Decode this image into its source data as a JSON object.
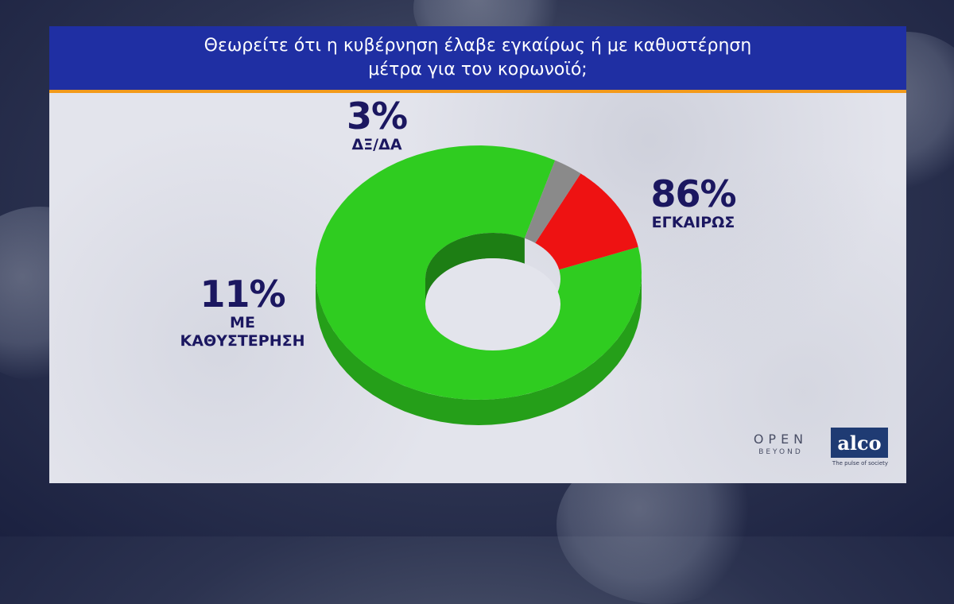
{
  "header": {
    "title_line1": "Θεωρείτε ότι η κυβέρνηση έλαβε εγκαίρως ή με καθυστέρηση",
    "title_line2": "μέτρα για τον κορωνοϊό;"
  },
  "chart_data": {
    "type": "pie",
    "style": "3d-donut",
    "slices": [
      {
        "label": "ΕΓΚΑΙΡΩΣ",
        "value": 86,
        "display": "86%",
        "color": "#2fcc20"
      },
      {
        "label": "ΜΕ ΚΑΘΥΣΤΕΡΗΣΗ",
        "value": 11,
        "display": "11%",
        "color": "#ee1212"
      },
      {
        "label": "ΔΞ/ΔΑ",
        "value": 3,
        "display": "3%",
        "color": "#8a8a8a"
      }
    ]
  },
  "labels": {
    "d_pct": "3%",
    "d_label": "ΔΞ/ΔΑ",
    "a_pct": "86%",
    "a_label": "ΕΓΚΑΙΡΩΣ",
    "m_pct": "11%",
    "m_label_line1": "ΜΕ",
    "m_label_line2": "ΚΑΘΥΣΤΕΡΗΣΗ"
  },
  "logos": {
    "open_main": "OPEN",
    "open_sub": "BEYOND",
    "alco": "alco",
    "alco_tagline": "The pulse of society"
  },
  "colors": {
    "title_bar": "#1f2fa3",
    "title_accent": "#f39a1b",
    "label_text": "#1b1760"
  }
}
